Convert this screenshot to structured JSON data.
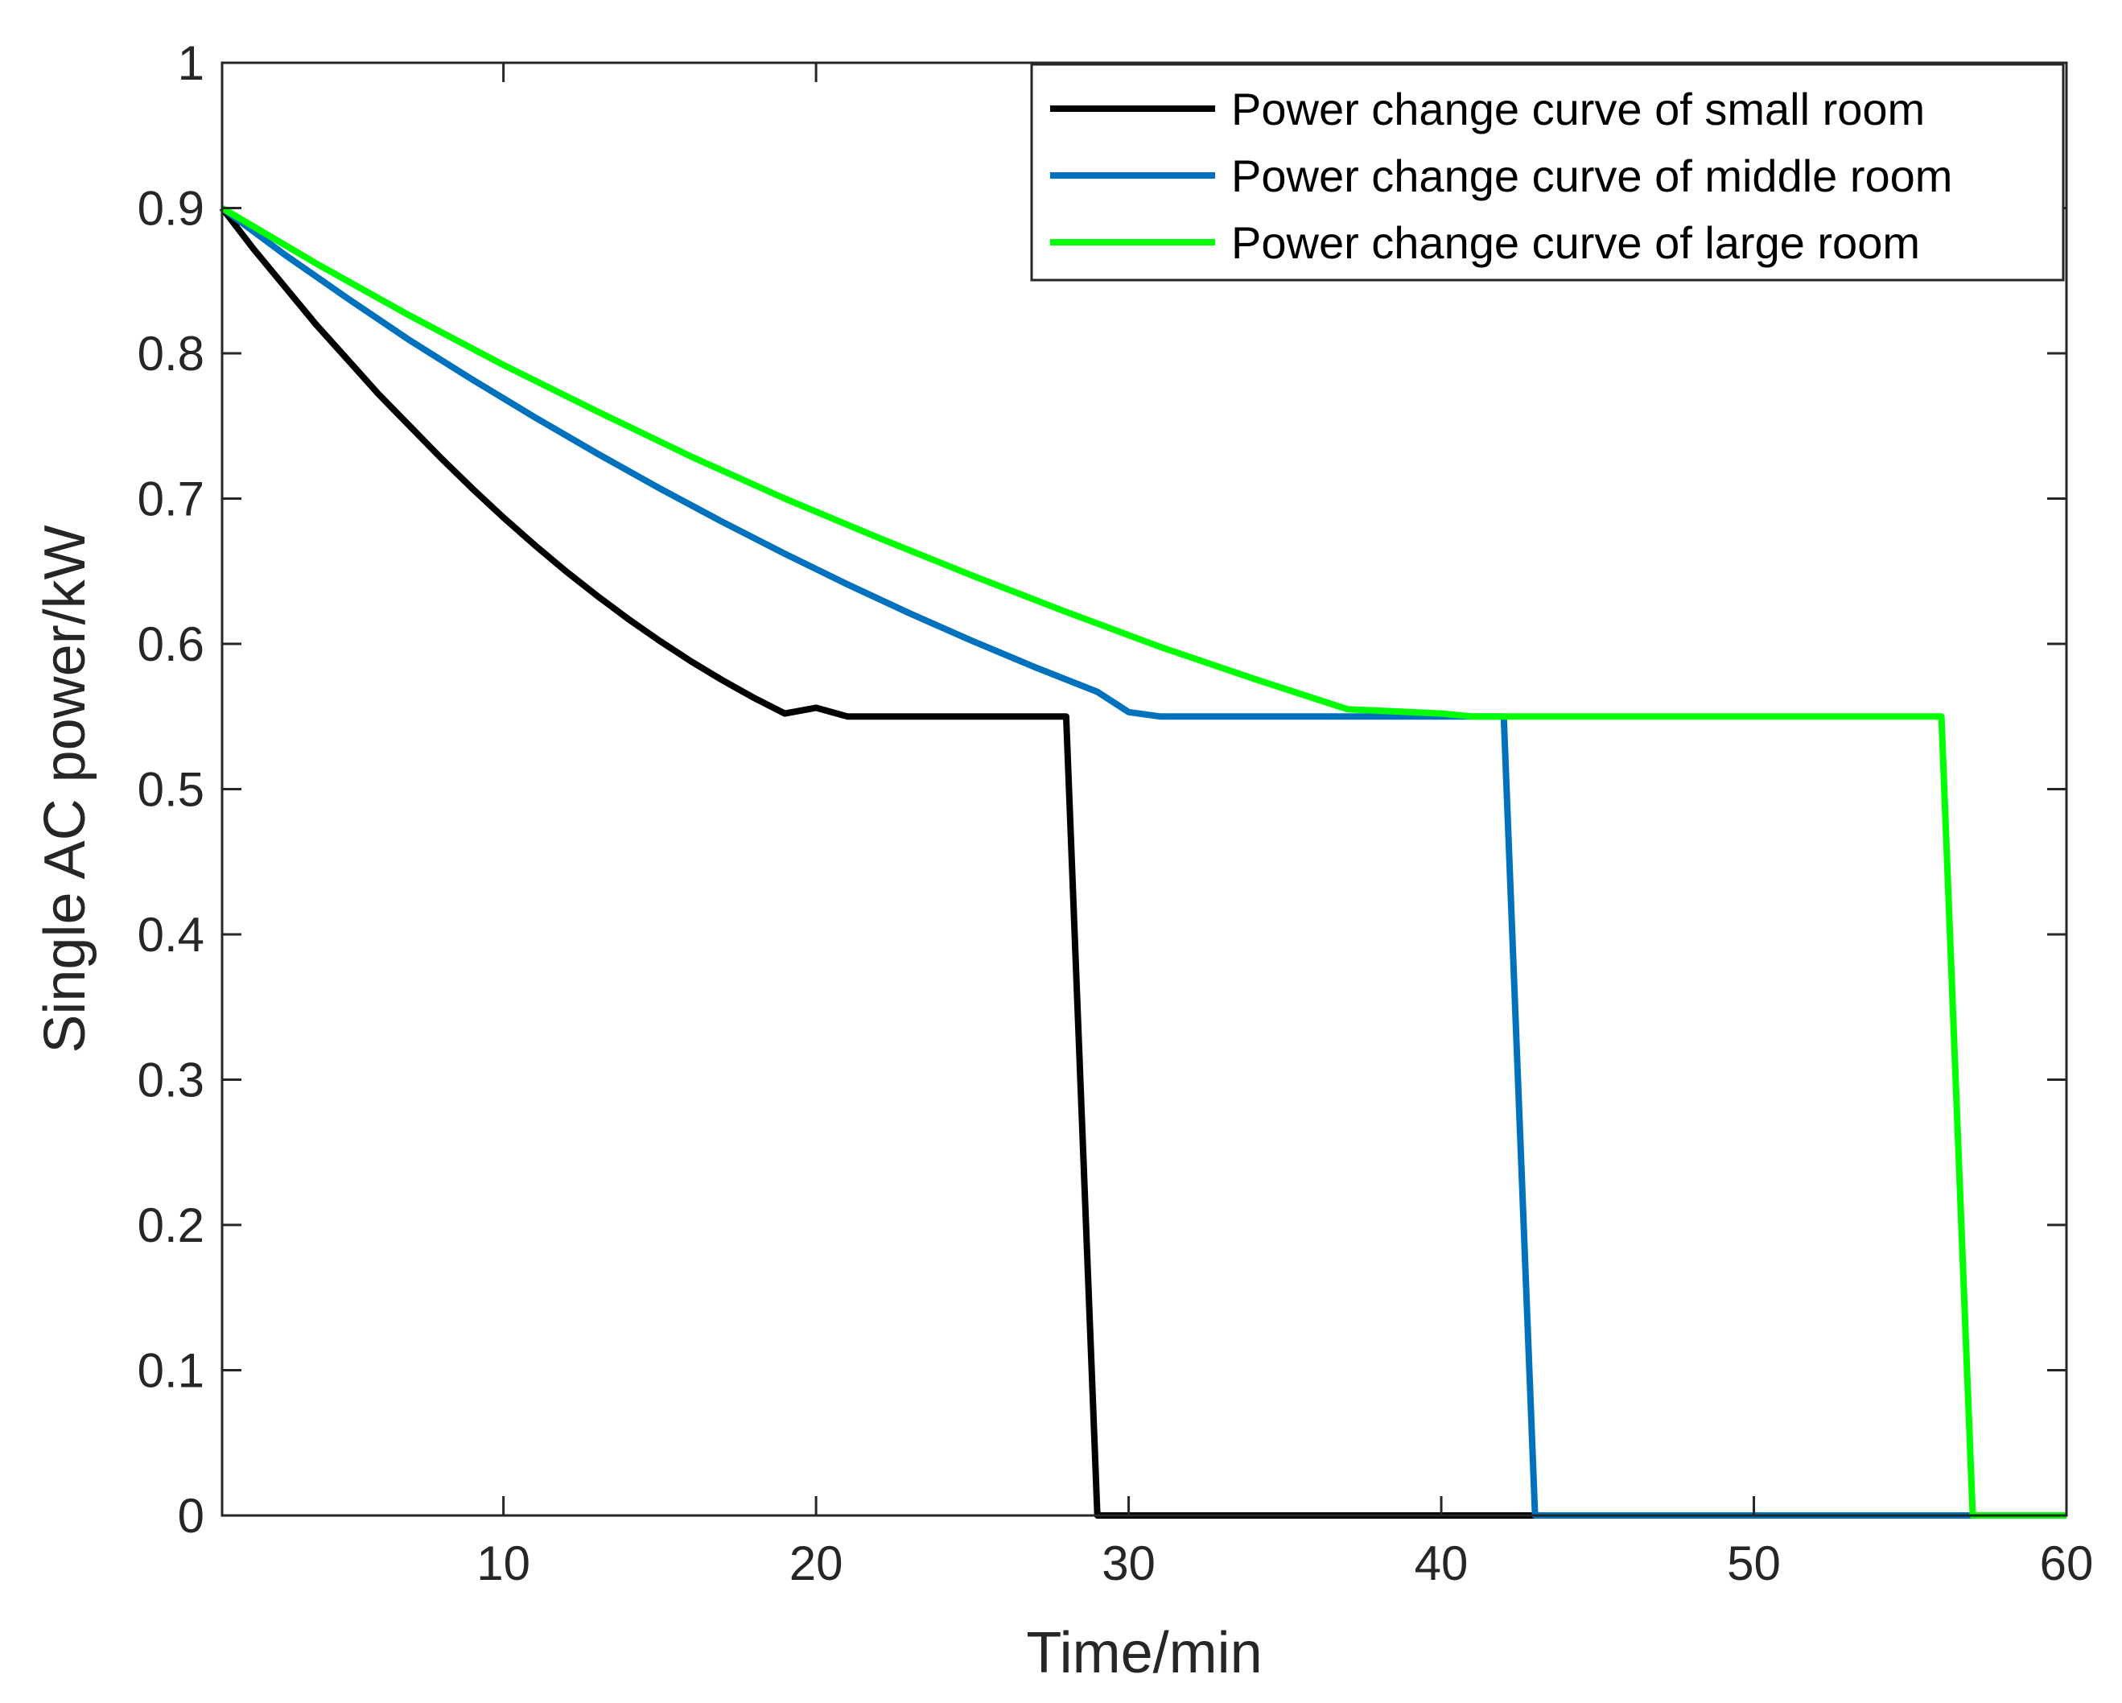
{
  "chart_data": {
    "type": "line",
    "title": "",
    "xlabel": "Time/min",
    "ylabel": "Single AC power/kW",
    "xlim": [
      1,
      60
    ],
    "ylim": [
      0,
      1
    ],
    "xticks": [
      10,
      20,
      30,
      40,
      50,
      60
    ],
    "xtick_labels": [
      "10",
      "20",
      "30",
      "40",
      "50",
      "60"
    ],
    "yticks": [
      0,
      0.1,
      0.2,
      0.3,
      0.4,
      0.5,
      0.6,
      0.7,
      0.8,
      0.9,
      1
    ],
    "ytick_labels": [
      "0",
      "0.1",
      "0.2",
      "0.3",
      "0.4",
      "0.5",
      "0.6",
      "0.7",
      "0.8",
      "0.9",
      "1"
    ],
    "grid": false,
    "legend_position": "top-right",
    "series": [
      {
        "name": "Power change curve of small room",
        "color": "#000000",
        "x": [
          1,
          2,
          3,
          4,
          5,
          6,
          7,
          8,
          9,
          10,
          11,
          12,
          13,
          14,
          15,
          16,
          17,
          18,
          19,
          20,
          21,
          22,
          23,
          24,
          25,
          26,
          27,
          28,
          29,
          30,
          35,
          40,
          43
        ],
        "y": [
          0.9,
          0.872,
          0.846,
          0.82,
          0.796,
          0.772,
          0.75,
          0.728,
          0.707,
          0.687,
          0.668,
          0.65,
          0.633,
          0.617,
          0.602,
          0.588,
          0.575,
          0.563,
          0.552,
          0.556,
          0.55,
          0.55,
          0.55,
          0.55,
          0.55,
          0.55,
          0.55,
          0.55,
          0,
          0,
          0,
          0,
          0
        ]
      },
      {
        "name": "Power change curve of middle room",
        "color": "#0072BD",
        "x": [
          1,
          3,
          5,
          7,
          9,
          11,
          13,
          15,
          17,
          19,
          21,
          23,
          25,
          27,
          29,
          30,
          31,
          35,
          40,
          42,
          43,
          50,
          57
        ],
        "y": [
          0.9,
          0.868,
          0.838,
          0.809,
          0.782,
          0.756,
          0.731,
          0.707,
          0.684,
          0.662,
          0.641,
          0.621,
          0.602,
          0.584,
          0.567,
          0.553,
          0.55,
          0.55,
          0.55,
          0.55,
          0,
          0,
          0
        ]
      },
      {
        "name": "Power change curve of large room",
        "color": "#00FF00",
        "x": [
          1,
          4,
          7,
          10,
          13,
          16,
          19,
          22,
          25,
          28,
          31,
          34,
          37,
          40,
          41,
          45,
          50,
          56,
          57,
          60
        ],
        "y": [
          0.9,
          0.862,
          0.826,
          0.792,
          0.76,
          0.729,
          0.7,
          0.673,
          0.647,
          0.622,
          0.598,
          0.576,
          0.555,
          0.552,
          0.55,
          0.55,
          0.55,
          0.55,
          0,
          0
        ]
      }
    ]
  }
}
